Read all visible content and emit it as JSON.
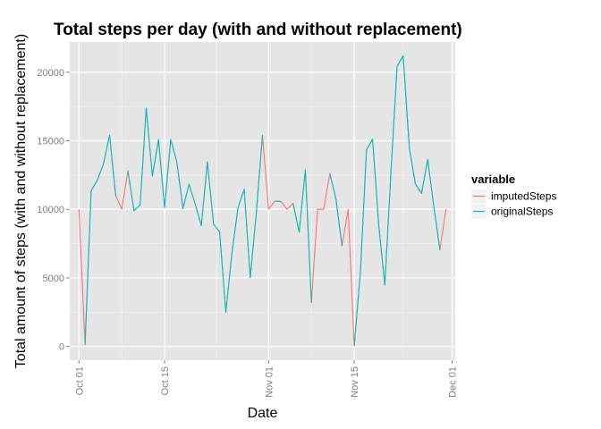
{
  "chart_data": {
    "type": "line",
    "title": "Total steps per day (with and without replacement)",
    "xlabel": "Date",
    "ylabel": "Total amount of steps (with and without replacement)",
    "xlim": [
      -1.5,
      61.5
    ],
    "ylim": [
      -1000,
      22200
    ],
    "grid": true,
    "x_ticks": [
      {
        "day": 0,
        "label": "Oct 01"
      },
      {
        "day": 14,
        "label": "Oct 15"
      },
      {
        "day": 31,
        "label": "Nov 01"
      },
      {
        "day": 45,
        "label": "Nov 15"
      },
      {
        "day": 61,
        "label": "Dec 01"
      }
    ],
    "y_ticks": [
      {
        "value": 0,
        "label": "0"
      },
      {
        "value": 5000,
        "label": "5000"
      },
      {
        "value": 10000,
        "label": "10000"
      },
      {
        "value": 15000,
        "label": "15000"
      },
      {
        "value": 20000,
        "label": "20000"
      }
    ],
    "legend_title": "variable",
    "legend_position": "right",
    "series": [
      {
        "name": "imputedSteps",
        "color": "#F8766D",
        "days": [
          0,
          1,
          2,
          3,
          4,
          5,
          6,
          7,
          8,
          9,
          10,
          11,
          12,
          13,
          14,
          15,
          16,
          17,
          18,
          19,
          20,
          21,
          22,
          23,
          24,
          25,
          26,
          27,
          28,
          29,
          30,
          31,
          32,
          33,
          34,
          35,
          36,
          37,
          38,
          39,
          40,
          41,
          42,
          43,
          44,
          45,
          46,
          47,
          48,
          49,
          50,
          51,
          52,
          53,
          54,
          55,
          56,
          57,
          58,
          59,
          60
        ],
        "values": [
          10000,
          126,
          11352,
          12116,
          13294,
          15420,
          11015,
          10000,
          12811,
          9900,
          10304,
          17382,
          12426,
          15098,
          10139,
          15084,
          13452,
          10056,
          11829,
          10395,
          8821,
          13460,
          8918,
          8355,
          2492,
          6778,
          10119,
          11458,
          5018,
          9819,
          15414,
          10000,
          10600,
          10571,
          10000,
          10439,
          8334,
          12883,
          3219,
          10000,
          10000,
          12608,
          10765,
          7336,
          10000,
          41,
          5441,
          14339,
          15110,
          8841,
          4472,
          12787,
          20427,
          21194,
          14478,
          11834,
          11162,
          13646,
          10183,
          7047,
          10000
        ]
      },
      {
        "name": "originalSteps",
        "color": "#00BFC4",
        "days": [
          1,
          2,
          3,
          4,
          5,
          6,
          8,
          9,
          10,
          11,
          12,
          13,
          14,
          15,
          16,
          17,
          18,
          19,
          20,
          21,
          22,
          23,
          24,
          25,
          26,
          27,
          28,
          29,
          30,
          32,
          33,
          35,
          36,
          37,
          38,
          41,
          42,
          43,
          45,
          46,
          47,
          48,
          49,
          50,
          51,
          52,
          53,
          54,
          55,
          56,
          57,
          58,
          59
        ],
        "values": [
          126,
          11352,
          12116,
          13294,
          15420,
          11015,
          12811,
          9900,
          10304,
          17382,
          12426,
          15098,
          10139,
          15084,
          13452,
          10056,
          11829,
          10395,
          8821,
          13460,
          8918,
          8355,
          2492,
          6778,
          10119,
          11458,
          5018,
          9819,
          15414,
          10600,
          10571,
          10439,
          8334,
          12883,
          3219,
          12608,
          10765,
          7336,
          41,
          5441,
          14339,
          15110,
          8841,
          4472,
          12787,
          20427,
          21194,
          14478,
          11834,
          11162,
          13646,
          10183,
          7047
        ]
      }
    ]
  }
}
